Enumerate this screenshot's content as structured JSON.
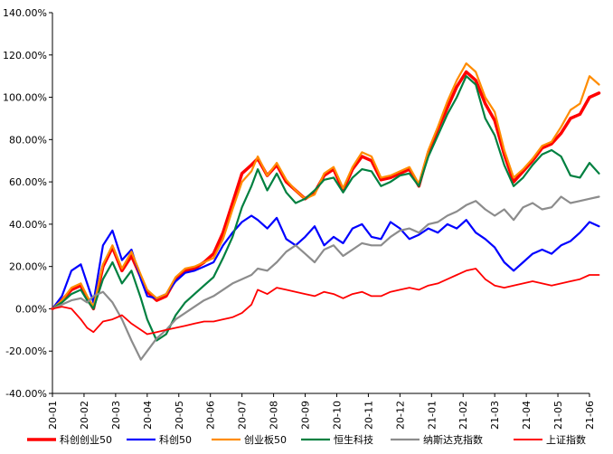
{
  "chart_data": {
    "type": "line",
    "title": "",
    "xlabel": "",
    "ylabel": "",
    "ylim": [
      -0.4,
      1.4
    ],
    "yticks": [
      -0.4,
      -0.2,
      0.0,
      0.2,
      0.4,
      0.6,
      0.8,
      1.0,
      1.2,
      1.4
    ],
    "ytick_labels": [
      "-40.00%",
      "-20.00%",
      "0.00%",
      "20.00%",
      "40.00%",
      "60.00%",
      "80.00%",
      "100.00%",
      "120.00%",
      "140.00%"
    ],
    "x_categories": [
      "20-01",
      "20-02",
      "20-03",
      "20-04",
      "20-05",
      "20-06",
      "20-07",
      "20-08",
      "20-09",
      "20-10",
      "20-11",
      "20-12",
      "21-01",
      "21-02",
      "21-03",
      "21-04",
      "21-05",
      "21-06"
    ],
    "grid": false,
    "legend_position": "bottom",
    "series": [
      {
        "name": "科创创业50",
        "color": "#ff0000",
        "width": 3.5,
        "x": [
          0.0,
          0.3,
          0.6,
          0.9,
          1.1,
          1.3,
          1.6,
          1.9,
          2.2,
          2.5,
          2.8,
          3.0,
          3.3,
          3.6,
          3.9,
          4.2,
          4.5,
          4.8,
          5.1,
          5.4,
          5.7,
          6.0,
          6.3,
          6.5,
          6.8,
          7.1,
          7.4,
          7.7,
          8.0,
          8.3,
          8.6,
          8.9,
          9.2,
          9.5,
          9.8,
          10.1,
          10.4,
          10.7,
          11.0,
          11.3,
          11.6,
          11.9,
          12.2,
          12.5,
          12.8,
          13.1,
          13.4,
          13.7,
          14.0,
          14.3,
          14.6,
          14.9,
          15.2,
          15.5,
          15.8,
          16.1,
          16.4,
          16.7,
          17.0,
          17.3
        ],
        "y": [
          0.0,
          0.04,
          0.09,
          0.11,
          0.05,
          0.0,
          0.2,
          0.29,
          0.18,
          0.25,
          0.15,
          0.08,
          0.04,
          0.06,
          0.14,
          0.18,
          0.19,
          0.22,
          0.26,
          0.36,
          0.5,
          0.64,
          0.68,
          0.71,
          0.63,
          0.68,
          0.6,
          0.56,
          0.52,
          0.55,
          0.63,
          0.66,
          0.56,
          0.66,
          0.72,
          0.7,
          0.61,
          0.62,
          0.64,
          0.66,
          0.58,
          0.74,
          0.85,
          0.95,
          1.05,
          1.12,
          1.08,
          0.97,
          0.89,
          0.73,
          0.6,
          0.65,
          0.7,
          0.76,
          0.78,
          0.83,
          0.9,
          0.92,
          1.0,
          1.02
        ]
      },
      {
        "name": "科创50",
        "color": "#0000ff",
        "width": 2.2,
        "x": [
          0.0,
          0.3,
          0.6,
          0.9,
          1.1,
          1.3,
          1.6,
          1.9,
          2.2,
          2.5,
          2.8,
          3.0,
          3.3,
          3.6,
          3.9,
          4.2,
          4.5,
          4.8,
          5.1,
          5.4,
          5.7,
          6.0,
          6.3,
          6.5,
          6.8,
          7.1,
          7.4,
          7.7,
          8.0,
          8.3,
          8.6,
          8.9,
          9.2,
          9.5,
          9.8,
          10.1,
          10.4,
          10.7,
          11.0,
          11.3,
          11.6,
          11.9,
          12.2,
          12.5,
          12.8,
          13.1,
          13.4,
          13.7,
          14.0,
          14.3,
          14.6,
          14.9,
          15.2,
          15.5,
          15.8,
          16.1,
          16.4,
          16.7,
          17.0,
          17.3
        ],
        "y": [
          0.0,
          0.06,
          0.18,
          0.21,
          0.12,
          0.03,
          0.3,
          0.37,
          0.23,
          0.28,
          0.14,
          0.06,
          0.05,
          0.07,
          0.13,
          0.17,
          0.18,
          0.2,
          0.22,
          0.3,
          0.36,
          0.41,
          0.44,
          0.42,
          0.38,
          0.43,
          0.33,
          0.3,
          0.34,
          0.39,
          0.3,
          0.34,
          0.31,
          0.38,
          0.4,
          0.34,
          0.33,
          0.41,
          0.38,
          0.33,
          0.35,
          0.38,
          0.36,
          0.4,
          0.38,
          0.42,
          0.36,
          0.33,
          0.29,
          0.22,
          0.18,
          0.22,
          0.26,
          0.28,
          0.26,
          0.3,
          0.32,
          0.36,
          0.41,
          0.39
        ]
      },
      {
        "name": "创业板50",
        "color": "#ff8c00",
        "width": 2.2,
        "x": [
          0.0,
          0.3,
          0.6,
          0.9,
          1.1,
          1.3,
          1.6,
          1.9,
          2.2,
          2.5,
          2.8,
          3.0,
          3.3,
          3.6,
          3.9,
          4.2,
          4.5,
          4.8,
          5.1,
          5.4,
          5.7,
          6.0,
          6.3,
          6.5,
          6.8,
          7.1,
          7.4,
          7.7,
          8.0,
          8.3,
          8.6,
          8.9,
          9.2,
          9.5,
          9.8,
          10.1,
          10.4,
          10.7,
          11.0,
          11.3,
          11.6,
          11.9,
          12.2,
          12.5,
          12.8,
          13.1,
          13.4,
          13.7,
          14.0,
          14.3,
          14.6,
          14.9,
          15.2,
          15.5,
          15.8,
          16.1,
          16.4,
          16.7,
          17.0,
          17.3
        ],
        "y": [
          0.0,
          0.04,
          0.1,
          0.12,
          0.06,
          0.01,
          0.21,
          0.3,
          0.19,
          0.27,
          0.16,
          0.09,
          0.05,
          0.07,
          0.15,
          0.19,
          0.2,
          0.22,
          0.24,
          0.33,
          0.47,
          0.6,
          0.65,
          0.72,
          0.63,
          0.69,
          0.61,
          0.56,
          0.52,
          0.54,
          0.64,
          0.67,
          0.57,
          0.67,
          0.74,
          0.72,
          0.62,
          0.63,
          0.65,
          0.67,
          0.59,
          0.75,
          0.86,
          0.98,
          1.08,
          1.16,
          1.12,
          1.0,
          0.93,
          0.75,
          0.62,
          0.66,
          0.71,
          0.77,
          0.79,
          0.86,
          0.94,
          0.97,
          1.1,
          1.06
        ]
      },
      {
        "name": "恒生科技",
        "color": "#008040",
        "width": 2.2,
        "x": [
          0.0,
          0.3,
          0.6,
          0.9,
          1.1,
          1.3,
          1.6,
          1.9,
          2.2,
          2.5,
          2.8,
          3.0,
          3.3,
          3.6,
          3.9,
          4.2,
          4.5,
          4.8,
          5.1,
          5.4,
          5.7,
          6.0,
          6.3,
          6.5,
          6.8,
          7.1,
          7.4,
          7.7,
          8.0,
          8.3,
          8.6,
          8.9,
          9.2,
          9.5,
          9.8,
          10.1,
          10.4,
          10.7,
          11.0,
          11.3,
          11.6,
          11.9,
          12.2,
          12.5,
          12.8,
          13.1,
          13.4,
          13.7,
          14.0,
          14.3,
          14.6,
          14.9,
          15.2,
          15.5,
          15.8,
          16.1,
          16.4,
          16.7,
          17.0,
          17.3
        ],
        "y": [
          0.0,
          0.03,
          0.07,
          0.09,
          0.04,
          0.0,
          0.14,
          0.22,
          0.12,
          0.18,
          0.05,
          -0.05,
          -0.15,
          -0.12,
          -0.03,
          0.03,
          0.07,
          0.11,
          0.15,
          0.24,
          0.34,
          0.48,
          0.58,
          0.66,
          0.56,
          0.64,
          0.55,
          0.5,
          0.52,
          0.56,
          0.61,
          0.62,
          0.55,
          0.62,
          0.66,
          0.65,
          0.58,
          0.6,
          0.63,
          0.64,
          0.58,
          0.72,
          0.82,
          0.92,
          1.0,
          1.1,
          1.06,
          0.9,
          0.82,
          0.68,
          0.58,
          0.62,
          0.68,
          0.73,
          0.75,
          0.72,
          0.63,
          0.62,
          0.69,
          0.64
        ]
      },
      {
        "name": "纳斯达克指数",
        "color": "#8c8c8c",
        "width": 2.2,
        "x": [
          0.0,
          0.3,
          0.6,
          0.9,
          1.1,
          1.3,
          1.6,
          1.9,
          2.2,
          2.5,
          2.8,
          3.0,
          3.3,
          3.6,
          3.9,
          4.2,
          4.5,
          4.8,
          5.1,
          5.4,
          5.7,
          6.0,
          6.3,
          6.5,
          6.8,
          7.1,
          7.4,
          7.7,
          8.0,
          8.3,
          8.6,
          8.9,
          9.2,
          9.5,
          9.8,
          10.1,
          10.4,
          10.7,
          11.0,
          11.3,
          11.6,
          11.9,
          12.2,
          12.5,
          12.8,
          13.1,
          13.4,
          13.7,
          14.0,
          14.3,
          14.6,
          14.9,
          15.2,
          15.5,
          15.8,
          16.1,
          16.4,
          16.7,
          17.0,
          17.3
        ],
        "y": [
          0.0,
          0.02,
          0.04,
          0.05,
          0.03,
          0.06,
          0.08,
          0.03,
          -0.05,
          -0.15,
          -0.24,
          -0.2,
          -0.14,
          -0.1,
          -0.05,
          -0.02,
          0.01,
          0.04,
          0.06,
          0.09,
          0.12,
          0.14,
          0.16,
          0.19,
          0.18,
          0.22,
          0.27,
          0.3,
          0.26,
          0.22,
          0.28,
          0.3,
          0.25,
          0.28,
          0.31,
          0.3,
          0.3,
          0.34,
          0.37,
          0.38,
          0.36,
          0.4,
          0.41,
          0.44,
          0.46,
          0.49,
          0.51,
          0.47,
          0.44,
          0.47,
          0.42,
          0.48,
          0.5,
          0.47,
          0.48,
          0.53,
          0.5,
          0.51,
          0.52,
          0.53
        ]
      },
      {
        "name": "上证指数",
        "color": "#ff0000",
        "width": 1.8,
        "x": [
          0.0,
          0.3,
          0.6,
          0.9,
          1.1,
          1.3,
          1.6,
          1.9,
          2.2,
          2.5,
          2.8,
          3.0,
          3.3,
          3.6,
          3.9,
          4.2,
          4.5,
          4.8,
          5.1,
          5.4,
          5.7,
          6.0,
          6.3,
          6.5,
          6.8,
          7.1,
          7.4,
          7.7,
          8.0,
          8.3,
          8.6,
          8.9,
          9.2,
          9.5,
          9.8,
          10.1,
          10.4,
          10.7,
          11.0,
          11.3,
          11.6,
          11.9,
          12.2,
          12.5,
          12.8,
          13.1,
          13.4,
          13.7,
          14.0,
          14.3,
          14.6,
          14.9,
          15.2,
          15.5,
          15.8,
          16.1,
          16.4,
          16.7,
          17.0,
          17.3
        ],
        "y": [
          0.0,
          0.01,
          0.0,
          -0.05,
          -0.09,
          -0.11,
          -0.06,
          -0.05,
          -0.03,
          -0.07,
          -0.1,
          -0.12,
          -0.11,
          -0.1,
          -0.09,
          -0.08,
          -0.07,
          -0.06,
          -0.06,
          -0.05,
          -0.04,
          -0.02,
          0.02,
          0.09,
          0.07,
          0.1,
          0.09,
          0.08,
          0.07,
          0.06,
          0.08,
          0.07,
          0.05,
          0.07,
          0.08,
          0.06,
          0.06,
          0.08,
          0.09,
          0.1,
          0.09,
          0.11,
          0.12,
          0.14,
          0.16,
          0.18,
          0.19,
          0.14,
          0.11,
          0.1,
          0.11,
          0.12,
          0.13,
          0.12,
          0.11,
          0.12,
          0.13,
          0.14,
          0.16,
          0.16
        ]
      }
    ]
  }
}
